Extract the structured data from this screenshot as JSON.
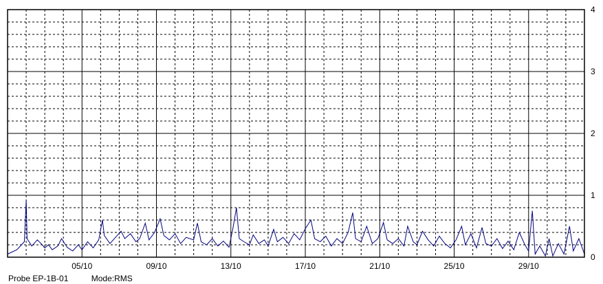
{
  "footer": {
    "probe": "Probe EP-1B-01",
    "mode": "Mode:RMS"
  },
  "colors": {
    "background": "#ffffff",
    "grid_major": "#000000",
    "grid_minor": "#000000",
    "series": "#00007f"
  },
  "chart_data": {
    "type": "line",
    "title": "",
    "xlabel": "",
    "ylabel": "",
    "x_axis": {
      "type": "date",
      "start": "01/10",
      "end": "01/11",
      "tick_labels": [
        "05/10",
        "09/10",
        "13/10",
        "17/10",
        "21/10",
        "25/10",
        "29/10"
      ],
      "grid_major_every_days": 4,
      "grid_minor_every_days": 1
    },
    "y_axis": {
      "position": "right",
      "ylim": [
        0,
        4
      ],
      "tick_labels": [
        "4",
        "3",
        "2",
        "1",
        "0"
      ],
      "grid_major_every": 1,
      "grid_minor_every": 0.2
    },
    "grid": true,
    "legend": "none",
    "series": [
      {
        "name": "",
        "color": "#00007f",
        "description_x_unit": "day-of-month",
        "points": [
          [
            1.0,
            0.05
          ],
          [
            1.5,
            0.12
          ],
          [
            1.9,
            0.25
          ],
          [
            2.0,
            0.92
          ],
          [
            2.05,
            0.3
          ],
          [
            2.3,
            0.18
          ],
          [
            2.6,
            0.28
          ],
          [
            2.8,
            0.22
          ],
          [
            3.0,
            0.15
          ],
          [
            3.2,
            0.2
          ],
          [
            3.4,
            0.12
          ],
          [
            3.7,
            0.18
          ],
          [
            3.9,
            0.3
          ],
          [
            4.2,
            0.16
          ],
          [
            4.5,
            0.1
          ],
          [
            4.8,
            0.2
          ],
          [
            5.0,
            0.12
          ],
          [
            5.3,
            0.25
          ],
          [
            5.6,
            0.15
          ],
          [
            5.9,
            0.28
          ],
          [
            6.1,
            0.6
          ],
          [
            6.2,
            0.35
          ],
          [
            6.5,
            0.22
          ],
          [
            6.8,
            0.32
          ],
          [
            7.1,
            0.42
          ],
          [
            7.3,
            0.3
          ],
          [
            7.6,
            0.38
          ],
          [
            7.9,
            0.25
          ],
          [
            8.1,
            0.3
          ],
          [
            8.4,
            0.55
          ],
          [
            8.6,
            0.28
          ],
          [
            8.9,
            0.4
          ],
          [
            9.2,
            0.62
          ],
          [
            9.4,
            0.35
          ],
          [
            9.7,
            0.28
          ],
          [
            10.0,
            0.38
          ],
          [
            10.3,
            0.22
          ],
          [
            10.6,
            0.32
          ],
          [
            11.0,
            0.28
          ],
          [
            11.2,
            0.55
          ],
          [
            11.4,
            0.25
          ],
          [
            11.7,
            0.2
          ],
          [
            12.0,
            0.3
          ],
          [
            12.3,
            0.18
          ],
          [
            12.6,
            0.26
          ],
          [
            12.9,
            0.16
          ],
          [
            13.1,
            0.45
          ],
          [
            13.3,
            0.8
          ],
          [
            13.45,
            0.3
          ],
          [
            13.7,
            0.25
          ],
          [
            14.0,
            0.2
          ],
          [
            14.2,
            0.36
          ],
          [
            14.5,
            0.22
          ],
          [
            14.8,
            0.28
          ],
          [
            15.0,
            0.18
          ],
          [
            15.3,
            0.45
          ],
          [
            15.5,
            0.25
          ],
          [
            15.8,
            0.32
          ],
          [
            16.1,
            0.22
          ],
          [
            16.4,
            0.38
          ],
          [
            16.7,
            0.28
          ],
          [
            17.0,
            0.46
          ],
          [
            17.3,
            0.6
          ],
          [
            17.5,
            0.3
          ],
          [
            17.8,
            0.25
          ],
          [
            18.1,
            0.34
          ],
          [
            18.4,
            0.18
          ],
          [
            18.7,
            0.3
          ],
          [
            19.0,
            0.22
          ],
          [
            19.3,
            0.4
          ],
          [
            19.55,
            0.72
          ],
          [
            19.7,
            0.3
          ],
          [
            20.0,
            0.25
          ],
          [
            20.3,
            0.5
          ],
          [
            20.6,
            0.22
          ],
          [
            20.9,
            0.3
          ],
          [
            21.2,
            0.56
          ],
          [
            21.4,
            0.28
          ],
          [
            21.7,
            0.22
          ],
          [
            22.0,
            0.3
          ],
          [
            22.3,
            0.18
          ],
          [
            22.5,
            0.5
          ],
          [
            22.8,
            0.25
          ],
          [
            23.0,
            0.2
          ],
          [
            23.3,
            0.42
          ],
          [
            23.6,
            0.28
          ],
          [
            23.9,
            0.18
          ],
          [
            24.2,
            0.34
          ],
          [
            24.5,
            0.22
          ],
          [
            24.8,
            0.15
          ],
          [
            25.1,
            0.28
          ],
          [
            25.4,
            0.5
          ],
          [
            25.6,
            0.2
          ],
          [
            25.9,
            0.38
          ],
          [
            26.2,
            0.15
          ],
          [
            26.5,
            0.48
          ],
          [
            26.7,
            0.22
          ],
          [
            27.0,
            0.18
          ],
          [
            27.3,
            0.3
          ],
          [
            27.6,
            0.14
          ],
          [
            27.9,
            0.26
          ],
          [
            28.2,
            0.12
          ],
          [
            28.5,
            0.4
          ],
          [
            28.8,
            0.2
          ],
          [
            29.0,
            0.1
          ],
          [
            29.2,
            0.75
          ],
          [
            29.35,
            0.05
          ],
          [
            29.6,
            0.18
          ],
          [
            29.9,
            0.02
          ],
          [
            30.1,
            0.3
          ],
          [
            30.3,
            0.02
          ],
          [
            30.6,
            0.22
          ],
          [
            30.9,
            0.05
          ],
          [
            31.2,
            0.5
          ],
          [
            31.4,
            0.1
          ],
          [
            31.7,
            0.3
          ],
          [
            32.0,
            0.05
          ]
        ]
      }
    ]
  }
}
